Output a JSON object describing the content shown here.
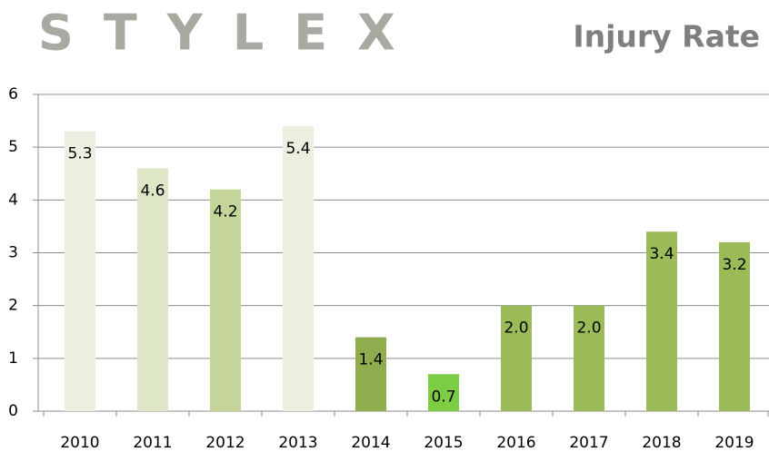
{
  "chart_data": {
    "type": "bar",
    "logo": "STYLEX",
    "title": "Injury Rate",
    "categories": [
      "2010",
      "2011",
      "2012",
      "2013",
      "2014",
      "2015",
      "2016",
      "2017",
      "2018",
      "2019"
    ],
    "values": [
      5.3,
      4.6,
      4.2,
      5.4,
      1.4,
      0.7,
      2,
      2,
      3.4,
      3.2
    ],
    "value_labels": [
      "5.3",
      "4.6",
      "4.2",
      "5.4",
      "1.4",
      "0.7",
      "2.0",
      "2.0",
      "3.4",
      "3.2"
    ],
    "colors": [
      "#ebefdf",
      "#dde6c6",
      "#c5d59a",
      "#ebefdf",
      "#8fad4f",
      "#7ccc44",
      "#9bbb59",
      "#9bbb59",
      "#9bbb59",
      "#9bbb59"
    ],
    "ylim": [
      0,
      6
    ],
    "yticks": [
      0,
      1,
      2,
      3,
      4,
      5,
      6
    ],
    "grid": true
  }
}
